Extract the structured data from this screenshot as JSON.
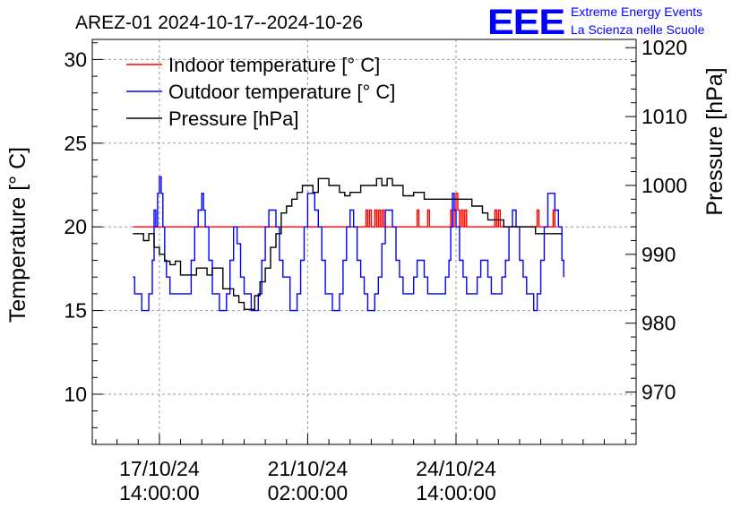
{
  "chart_data": {
    "type": "line",
    "title": "AREZ-01 2024-10-17--2024-10-26",
    "logo": {
      "mark": "EEE",
      "line1": "Extreme Energy Events",
      "line2": "La Scienza nelle Scuole",
      "color": "#0000ff"
    },
    "ylabel_left": "Temperature [° C]",
    "ylabel_right": "Pressure [hPa]",
    "ylim_left": [
      7,
      31.2
    ],
    "ylim_right": [
      962.4,
      1021.2
    ],
    "yticks_left": [
      10,
      15,
      20,
      25,
      30
    ],
    "yticks_right": [
      970,
      980,
      990,
      1000,
      1010,
      1020
    ],
    "xlim_hours": [
      -38,
      270
    ],
    "xticks": [
      {
        "hour": 0,
        "line1": "17/10/24",
        "line2": "14:00:00"
      },
      {
        "hour": 84,
        "line1": "21/10/24",
        "line2": "02:00:00"
      },
      {
        "hour": 168,
        "line1": "24/10/24",
        "line2": "14:00:00"
      }
    ],
    "grid": true,
    "legend_position": "top-left",
    "series": [
      {
        "name": "Indoor temperature [° C]",
        "axis": "left",
        "color": "#ff0000",
        "x": [
          -15,
          116,
          117,
          118,
          119,
          120,
          121,
          122,
          123,
          124,
          125,
          126,
          127,
          128,
          145,
          146,
          147,
          148,
          149,
          150,
          151,
          152,
          153,
          154,
          164,
          165,
          166,
          167,
          168,
          169,
          170,
          171,
          172,
          173,
          174,
          175,
          189,
          190,
          191,
          192,
          193,
          194,
          213,
          214,
          215,
          222,
          223,
          224,
          225
        ],
        "y": [
          20,
          20,
          21,
          20,
          21,
          20,
          20,
          21,
          20,
          21,
          20,
          21,
          20,
          20,
          20,
          21,
          20,
          20,
          20,
          20,
          20,
          21,
          20,
          20,
          20,
          21,
          20,
          21,
          22,
          21,
          20,
          21,
          20,
          21,
          20,
          20,
          20,
          21,
          20,
          21,
          20,
          20,
          20,
          21,
          20,
          20,
          21,
          20,
          20
        ]
      },
      {
        "name": "Outdoor temperature [° C]",
        "axis": "left",
        "color": "#0000ff",
        "x": [
          -15,
          -14,
          -12,
          -10,
          -8,
          -6,
          -4,
          -3,
          -2,
          -1,
          0,
          1,
          2,
          3,
          4,
          6,
          8,
          10,
          14,
          18,
          20,
          22,
          24,
          25,
          26,
          28,
          30,
          32,
          34,
          36,
          38,
          40,
          42,
          44,
          46,
          48,
          50,
          52,
          54,
          56,
          58,
          60,
          62,
          64,
          66,
          68,
          70,
          72,
          74,
          76,
          78,
          80,
          82,
          84,
          86,
          88,
          90,
          92,
          94,
          96,
          98,
          100,
          102,
          104,
          106,
          108,
          110,
          112,
          114,
          116,
          118,
          120,
          122,
          124,
          126,
          128,
          130,
          132,
          134,
          136,
          138,
          140,
          142,
          144,
          146,
          148,
          150,
          152,
          154,
          156,
          158,
          160,
          162,
          164,
          165,
          166,
          167,
          168,
          170,
          172,
          174,
          176,
          178,
          180,
          182,
          184,
          186,
          188,
          190,
          192,
          194,
          196,
          198,
          200,
          202,
          204,
          206,
          208,
          210,
          212,
          214,
          216,
          218,
          220,
          222,
          224,
          226,
          228,
          229
        ],
        "y": [
          17,
          16,
          16,
          15,
          15,
          16,
          18,
          21,
          20,
          22,
          23,
          22,
          20,
          18,
          17,
          16,
          16,
          16,
          16,
          18,
          20,
          21,
          22,
          21,
          20,
          18,
          16,
          16,
          15,
          15,
          16,
          18,
          20,
          19,
          17,
          16,
          16,
          15,
          15,
          16,
          18,
          20,
          21,
          21,
          20,
          18,
          17,
          17,
          15,
          15,
          16,
          18,
          20,
          22,
          22,
          21,
          20,
          18,
          16,
          16,
          15,
          15,
          16,
          18,
          20,
          21,
          20,
          18,
          17,
          16,
          15,
          15,
          16,
          17,
          19,
          21,
          21,
          20,
          18,
          17,
          16,
          16,
          16,
          17,
          18,
          18,
          17,
          16,
          16,
          16,
          16,
          16,
          17,
          18,
          20,
          22,
          21,
          20,
          18,
          17,
          16,
          16,
          16,
          17,
          18,
          18,
          17,
          16,
          16,
          16,
          17,
          18,
          20,
          21,
          20,
          18,
          17,
          16,
          16,
          15,
          16,
          18,
          20,
          22,
          22,
          21,
          20,
          18,
          17
        ]
      },
      {
        "name": "Pressure [hPa]",
        "axis": "right",
        "color": "#000000",
        "x": [
          -15,
          -12,
          -9,
          -6,
          -3,
          0,
          3,
          6,
          9,
          12,
          15,
          18,
          21,
          24,
          27,
          30,
          33,
          36,
          39,
          42,
          45,
          48,
          51,
          54,
          57,
          60,
          63,
          66,
          69,
          72,
          75,
          78,
          81,
          84,
          87,
          90,
          93,
          96,
          99,
          102,
          105,
          108,
          111,
          114,
          117,
          120,
          123,
          126,
          129,
          132,
          135,
          138,
          141,
          144,
          147,
          150,
          153,
          156,
          159,
          162,
          165,
          168,
          171,
          174,
          177,
          180,
          183,
          186,
          189,
          192,
          195,
          198,
          201,
          204,
          207,
          210,
          213,
          216,
          219,
          222,
          225,
          228
        ],
        "y": [
          993,
          993,
          992,
          993,
          991,
          990,
          989,
          988.5,
          989,
          987,
          987,
          987,
          988,
          988,
          987,
          988,
          988,
          985,
          985,
          984,
          983,
          982,
          982,
          984,
          986,
          988,
          991,
          993,
          996,
          997,
          998,
          999,
          1000,
          1000,
          999,
          1001,
          1001,
          1000,
          1000,
          999,
          998.5,
          999,
          999,
          1000,
          1000,
          1000,
          1001,
          1000,
          1001,
          1000,
          1000,
          998.5,
          998.5,
          999,
          999,
          998,
          998,
          998,
          998,
          998,
          998,
          998,
          998,
          998,
          997,
          997,
          996,
          995,
          995,
          995,
          994,
          994,
          994,
          994,
          994,
          994,
          993,
          993,
          993,
          993,
          993,
          993
        ]
      }
    ]
  }
}
